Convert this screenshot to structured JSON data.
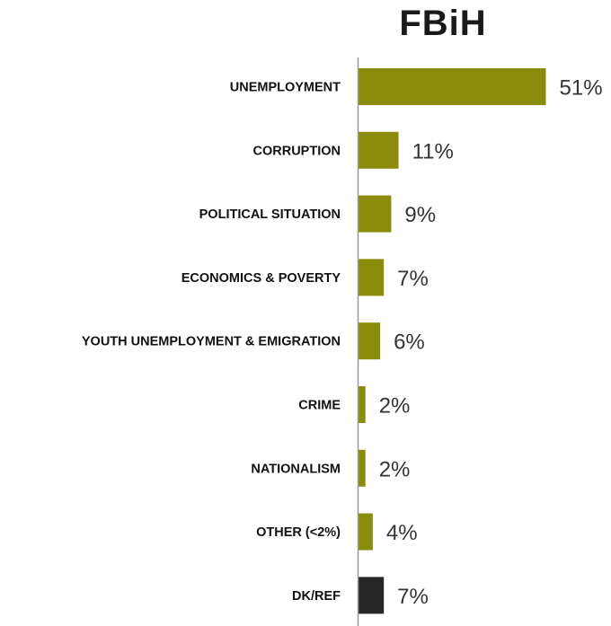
{
  "chart_data": {
    "type": "bar",
    "orientation": "horizontal",
    "title": "FBiH",
    "categories": [
      "UNEMPLOYMENT",
      "CORRUPTION",
      "POLITICAL SITUATION",
      "ECONOMICS & POVERTY",
      "YOUTH UNEMPLOYMENT & EMIGRATION",
      "CRIME",
      "NATIONALISM",
      "OTHER (<2%)",
      "DK/REF"
    ],
    "values": [
      51,
      11,
      9,
      7,
      6,
      2,
      2,
      4,
      7
    ],
    "value_labels": [
      "51%",
      "11%",
      "9%",
      "7%",
      "6%",
      "2%",
      "2%",
      "4%",
      "7%"
    ],
    "unit": "%",
    "xlim": [
      0,
      60
    ],
    "grid": false,
    "legend": "none",
    "colors": {
      "default_bar": "#8B8C0C",
      "dk_ref_bar": "#262626",
      "axis": "#999999"
    },
    "bar_colors": [
      "#8B8C0C",
      "#8B8C0C",
      "#8B8C0C",
      "#8B8C0C",
      "#8B8C0C",
      "#8B8C0C",
      "#8B8C0C",
      "#8B8C0C",
      "#262626"
    ]
  }
}
